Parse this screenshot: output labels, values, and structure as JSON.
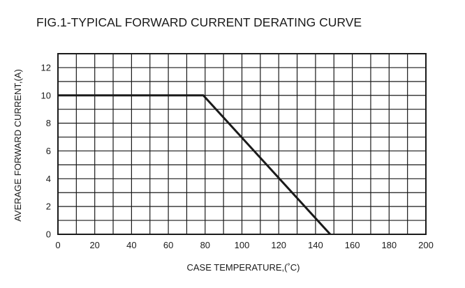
{
  "chart_data": {
    "type": "line",
    "title": "FIG.1-TYPICAL FORWARD CURRENT DERATING CURVE",
    "xlabel": "CASE  TEMPERATURE,(˚C)",
    "ylabel": "AVERAGE FORWARD CURRENT,(A)",
    "xlim": [
      0,
      200
    ],
    "ylim": [
      0,
      13
    ],
    "x_ticks": [
      0,
      20,
      40,
      60,
      80,
      100,
      120,
      140,
      160,
      180,
      200
    ],
    "y_ticks": [
      0,
      2,
      4,
      6,
      8,
      10,
      12
    ],
    "grid": true,
    "x_grid_step": 10,
    "y_grid_step": 1,
    "series": [
      {
        "x": [
          0,
          79,
          148
        ],
        "y": [
          10,
          10,
          0
        ]
      }
    ],
    "colors": {
      "line": "#1a1a1a",
      "grid": "#1a1a1a",
      "background": "#ffffff"
    }
  }
}
